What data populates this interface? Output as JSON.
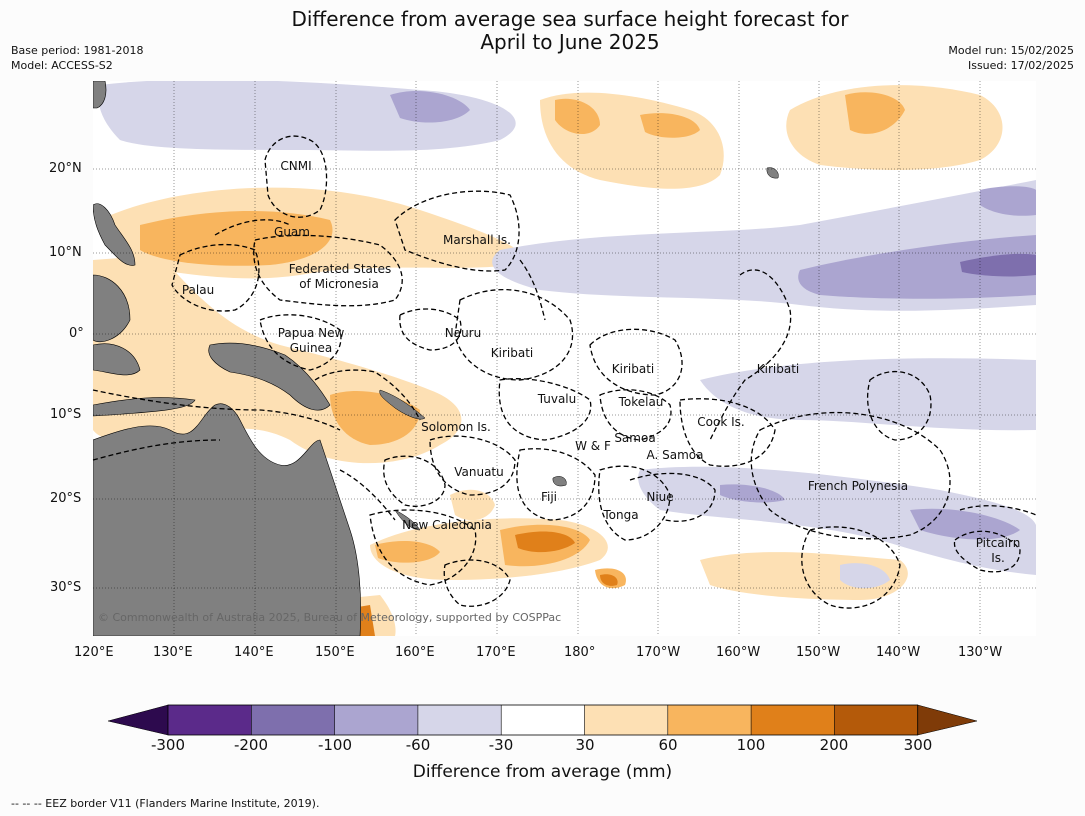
{
  "title_line1": "Difference from average sea surface height forecast for",
  "title_line2": "April to June 2025",
  "meta_left": [
    "Base period: 1981-2018",
    "Model: ACCESS-S2"
  ],
  "meta_right": [
    "Model run: 15/02/2025",
    "Issued: 17/02/2025"
  ],
  "lat_labels": [
    "20°N",
    "10°N",
    "0°",
    "10°S",
    "20°S",
    "30°S"
  ],
  "lon_labels": [
    "120°E",
    "130°E",
    "140°E",
    "150°E",
    "160°E",
    "170°E",
    "180°",
    "170°W",
    "160°W",
    "150°W",
    "140°W",
    "130°W"
  ],
  "regions": [
    "CNMI",
    "Guam",
    "Marshall Is.",
    "Federated States",
    "of Micronesia",
    "Palau",
    "Papua New",
    "Guinea",
    "Nauru",
    "Kiribati",
    "Kiribati",
    "Kiribati",
    "Tuvalu",
    "Tokelau",
    "Solomon Is.",
    "Cook Is.",
    "W & F",
    "Samoa",
    "A. Samoa",
    "Vanuatu",
    "Fiji",
    "Niue",
    "French Polynesia",
    "Tonga",
    "New Caledonia",
    "Pitcairn",
    "Is."
  ],
  "copyright": "© Commonwealth of Australia 2025, Bureau of Meteorology, supported by COSPPac",
  "colorbar": {
    "ticks": [
      "-300",
      "-200",
      "-100",
      "-60",
      "-30",
      "30",
      "60",
      "100",
      "200",
      "300"
    ],
    "colors": [
      "#2d0a4e",
      "#5b2a8a",
      "#7e6fad",
      "#aba5d0",
      "#d6d6e9",
      "#ffffff",
      "#fde0b4",
      "#f8b55e",
      "#e0801a",
      "#b45a0a",
      "#7f3b08"
    ],
    "title": "Difference from average (mm)"
  },
  "footer": "--  --  -- EEZ border V11 (Flanders Marine Institute, 2019).",
  "land_color": "#808080"
}
